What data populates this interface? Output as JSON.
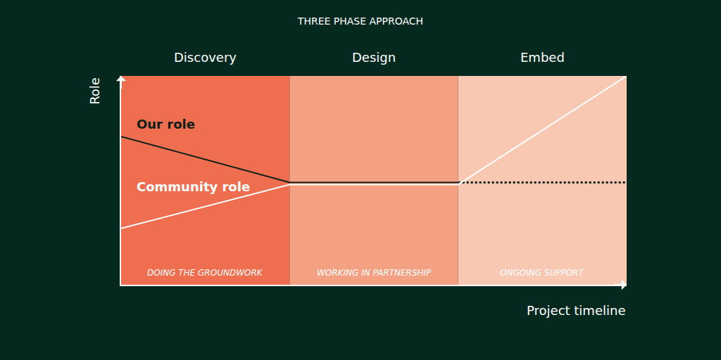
{
  "chart_data": {
    "type": "line",
    "title": "THREE PHASE APPROACH",
    "x_label": "Project timeline",
    "y_label": "Role",
    "xlim": [
      0,
      3
    ],
    "ylim": [
      0,
      10
    ],
    "xticks": [],
    "yticks": [],
    "tick_labels": false,
    "grid": false,
    "phases": [
      {
        "label": "Discovery",
        "sublabel": "DOING THE GROUNDWORK",
        "start": 0,
        "end": 1,
        "color": "#ee6e4f"
      },
      {
        "label": "Design",
        "sublabel": "WORKING IN PARTNERSHIP",
        "start": 1,
        "end": 2,
        "color": "#f4a083"
      },
      {
        "label": "Embed",
        "sublabel": "ONGOING SUPPORT",
        "start": 2,
        "end": 3,
        "color": "#f8c8b3"
      }
    ],
    "series": [
      {
        "name": "Our role",
        "color": "#0f1f17",
        "line_style": "solid",
        "x": [
          0,
          1,
          2
        ],
        "values": [
          7.1,
          4.9,
          4.9
        ]
      },
      {
        "color": "#0f1f17",
        "line_style": "dotted",
        "x": [
          2,
          3
        ],
        "values": [
          4.9,
          4.9
        ]
      },
      {
        "name": "Community role",
        "color": "#ffffff",
        "line_style": "solid",
        "x": [
          0,
          1,
          2,
          3
        ],
        "values": [
          2.7,
          4.8,
          4.8,
          10
        ]
      }
    ]
  }
}
